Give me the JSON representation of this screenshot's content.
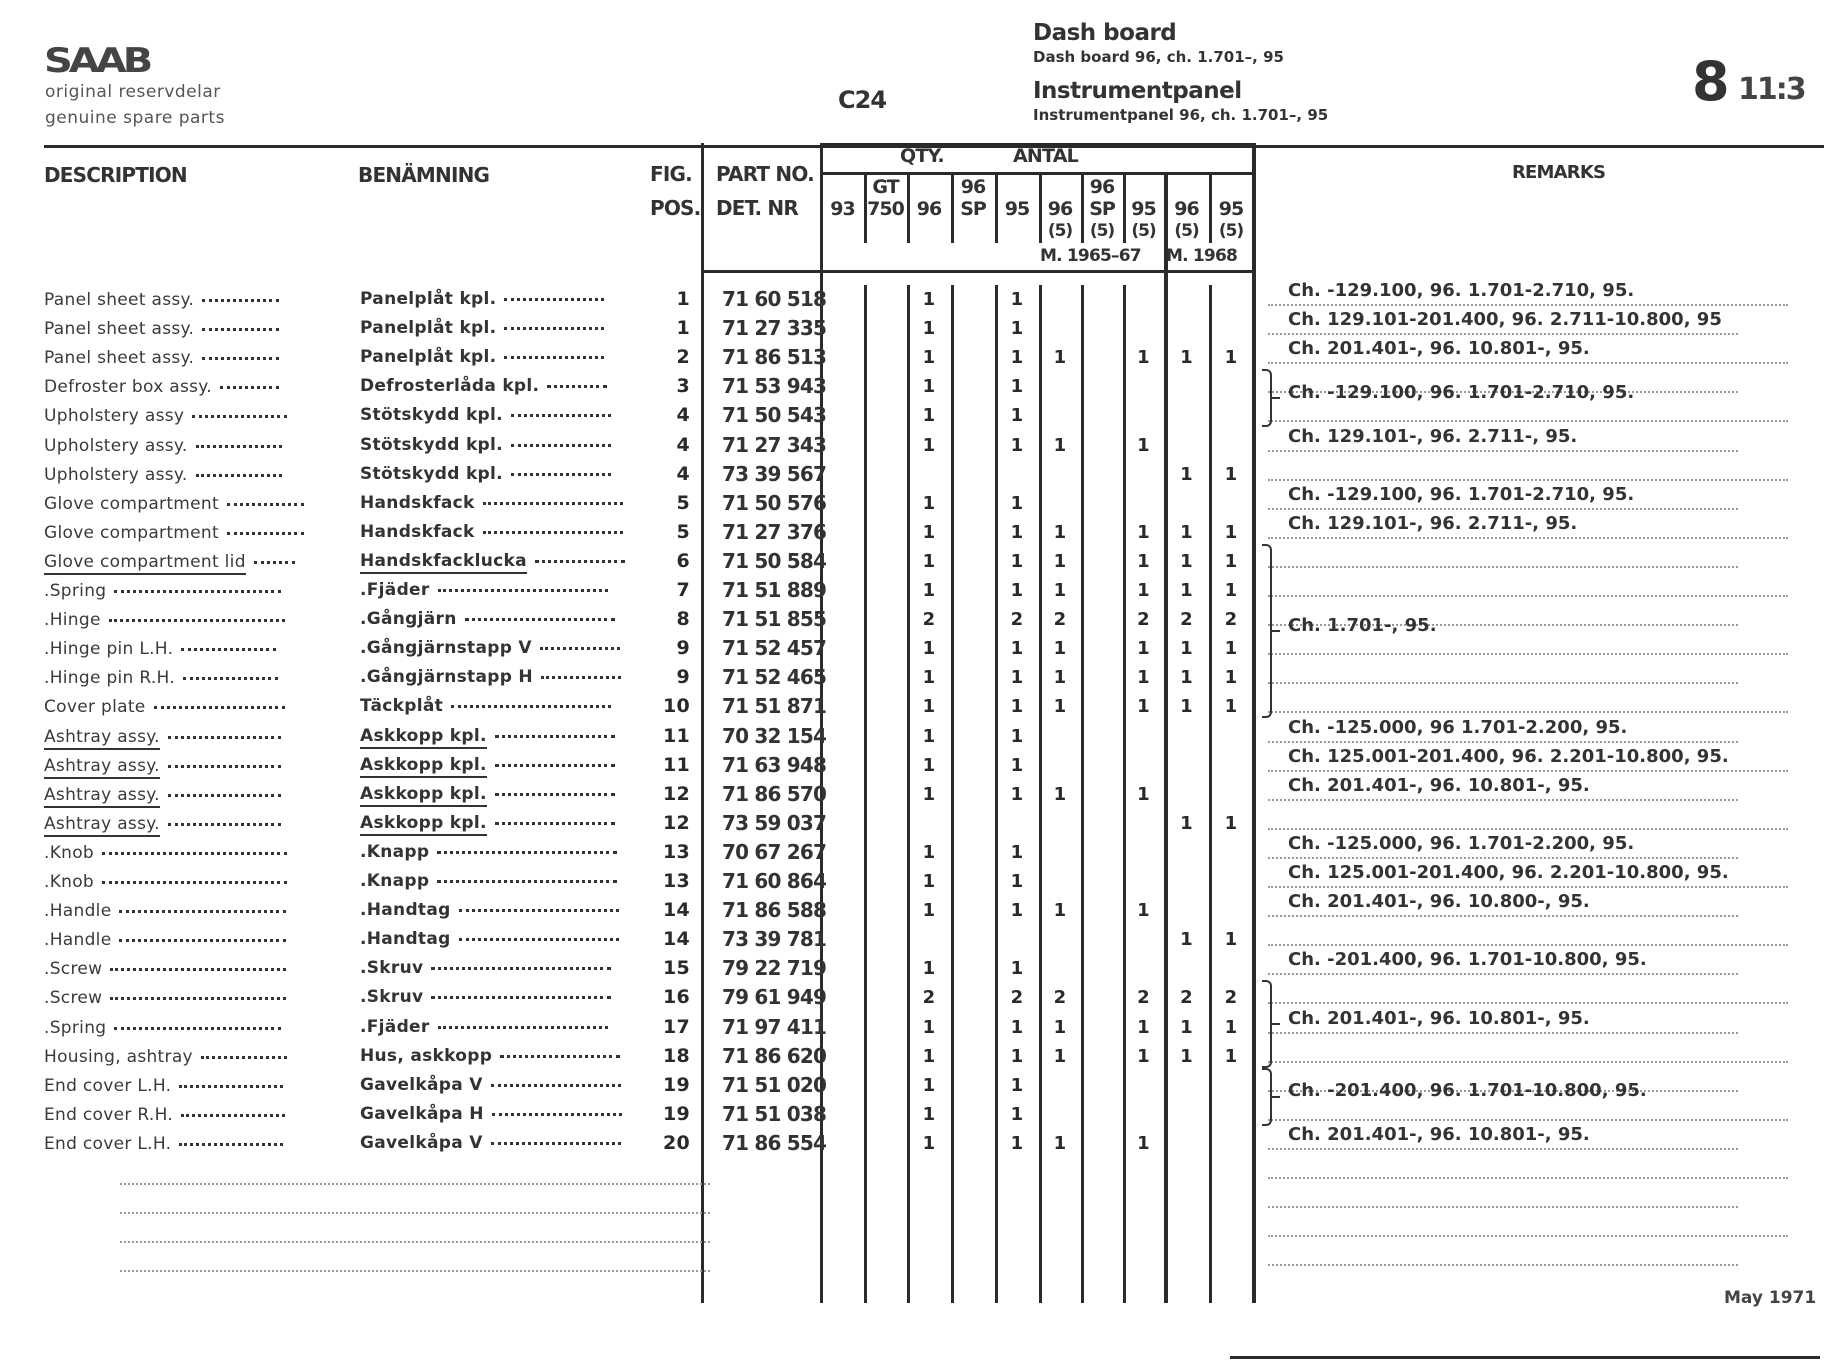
{
  "header": {
    "brand": "SAAB",
    "tagline_1": "original reservdelar",
    "tagline_2": "genuine spare parts",
    "group_code": "C24",
    "title_en": "Dash board",
    "subtitle_en": "Dash board 96, ch. 1.701–, 95",
    "title_sv": "Instrumentpanel",
    "subtitle_sv": "Instrumentpanel 96, ch. 1.701–, 95",
    "page_main": "8",
    "page_sub": "11:3"
  },
  "columns": {
    "description": "DESCRIPTION",
    "benamning": "BENÄMNING",
    "fig_1": "FIG.",
    "fig_2": "POS.",
    "part_1": "PART NO.",
    "part_2": "DET. NR",
    "qty": "QTY.",
    "antal": "ANTAL",
    "remarks": "REMARKS",
    "qty_cols": [
      {
        "top": "",
        "main": "93",
        "sub": ""
      },
      {
        "top": "GT",
        "main": "750",
        "sub": ""
      },
      {
        "top": "",
        "main": "96",
        "sub": ""
      },
      {
        "top": "96",
        "main": "SP",
        "sub": ""
      },
      {
        "top": "",
        "main": "95",
        "sub": ""
      },
      {
        "top": "",
        "main": "96",
        "sub": "(5)"
      },
      {
        "top": "96",
        "main": "SP",
        "sub": "(5)"
      },
      {
        "top": "",
        "main": "95",
        "sub": "(5)"
      },
      {
        "top": "",
        "main": "96",
        "sub": "(5)"
      },
      {
        "top": "",
        "main": "95",
        "sub": "(5)"
      }
    ],
    "model_year_1": "M. 1965–67",
    "model_year_2": "M. 1968"
  },
  "rows": [
    {
      "desc": "Panel sheet assy.",
      "ben": "Panelplåt kpl.",
      "fig": "1",
      "part": "71 60 518",
      "qty": [
        "",
        "",
        "1",
        "",
        "1",
        "",
        "",
        "",
        "",
        ""
      ]
    },
    {
      "desc": "Panel sheet assy.",
      "ben": "Panelplåt kpl.",
      "fig": "1",
      "part": "71 27 335",
      "qty": [
        "",
        "",
        "1",
        "",
        "1",
        "",
        "",
        "",
        "",
        ""
      ]
    },
    {
      "desc": "Panel sheet assy.",
      "ben": "Panelplåt kpl.",
      "fig": "2",
      "part": "71 86 513",
      "qty": [
        "",
        "",
        "1",
        "",
        "1",
        "1",
        "",
        "1",
        "1",
        "1"
      ]
    },
    {
      "desc": "Defroster box assy.",
      "ben": "Defrosterlåda kpl.",
      "fig": "3",
      "part": "71 53 943",
      "qty": [
        "",
        "",
        "1",
        "",
        "1",
        "",
        "",
        "",
        "",
        ""
      ]
    },
    {
      "desc": "Upholstery assy",
      "ben": "Stötskydd kpl.",
      "fig": "4",
      "part": "71 50 543",
      "qty": [
        "",
        "",
        "1",
        "",
        "1",
        "",
        "",
        "",
        "",
        ""
      ]
    },
    {
      "desc": "Upholstery assy.",
      "ben": "Stötskydd kpl.",
      "fig": "4",
      "part": "71 27 343",
      "qty": [
        "",
        "",
        "1",
        "",
        "1",
        "1",
        "",
        "1",
        "",
        ""
      ]
    },
    {
      "desc": "Upholstery assy.",
      "ben": "Stötskydd kpl.",
      "fig": "4",
      "part": "73 39 567",
      "qty": [
        "",
        "",
        "",
        "",
        "",
        "",
        "",
        "",
        "1",
        "1"
      ]
    },
    {
      "desc": "Glove compartment",
      "ben": "Handskfack",
      "fig": "5",
      "part": "71 50 576",
      "qty": [
        "",
        "",
        "1",
        "",
        "1",
        "",
        "",
        "",
        "",
        ""
      ]
    },
    {
      "desc": "Glove compartment",
      "ben": "Handskfack",
      "fig": "5",
      "part": "71 27 376",
      "qty": [
        "",
        "",
        "1",
        "",
        "1",
        "1",
        "",
        "1",
        "1",
        "1"
      ]
    },
    {
      "desc": "Glove compartment lid",
      "ben": "Handskfacklucka",
      "fig": "6",
      "part": "71 50 584",
      "qty": [
        "",
        "",
        "1",
        "",
        "1",
        "1",
        "",
        "1",
        "1",
        "1"
      ],
      "underline": true
    },
    {
      "desc": ".Spring",
      "ben": ".Fjäder",
      "fig": "7",
      "part": "71 51 889",
      "qty": [
        "",
        "",
        "1",
        "",
        "1",
        "1",
        "",
        "1",
        "1",
        "1"
      ]
    },
    {
      "desc": ".Hinge",
      "ben": ".Gångjärn",
      "fig": "8",
      "part": "71 51 855",
      "qty": [
        "",
        "",
        "2",
        "",
        "2",
        "2",
        "",
        "2",
        "2",
        "2"
      ]
    },
    {
      "desc": ".Hinge pin L.H.",
      "ben": ".Gångjärnstapp V",
      "fig": "9",
      "part": "71 52 457",
      "qty": [
        "",
        "",
        "1",
        "",
        "1",
        "1",
        "",
        "1",
        "1",
        "1"
      ]
    },
    {
      "desc": ".Hinge pin R.H.",
      "ben": ".Gångjärnstapp H",
      "fig": "9",
      "part": "71 52 465",
      "qty": [
        "",
        "",
        "1",
        "",
        "1",
        "1",
        "",
        "1",
        "1",
        "1"
      ]
    },
    {
      "desc": "Cover plate",
      "ben": "Täckplåt",
      "fig": "10",
      "part": "71 51 871",
      "qty": [
        "",
        "",
        "1",
        "",
        "1",
        "1",
        "",
        "1",
        "1",
        "1"
      ]
    },
    {
      "desc": "Ashtray assy.",
      "ben": "Askkopp kpl.",
      "fig": "11",
      "part": "70 32 154",
      "qty": [
        "",
        "",
        "1",
        "",
        "1",
        "",
        "",
        "",
        "",
        ""
      ],
      "underline": true
    },
    {
      "desc": "Ashtray assy.",
      "ben": "Askkopp kpl.",
      "fig": "11",
      "part": "71 63 948",
      "qty": [
        "",
        "",
        "1",
        "",
        "1",
        "",
        "",
        "",
        "",
        ""
      ],
      "underline": true
    },
    {
      "desc": "Ashtray assy.",
      "ben": "Askkopp kpl.",
      "fig": "12",
      "part": "71 86 570",
      "qty": [
        "",
        "",
        "1",
        "",
        "1",
        "1",
        "",
        "1",
        "",
        ""
      ],
      "underline": true
    },
    {
      "desc": "Ashtray assy.",
      "ben": "Askkopp kpl.",
      "fig": "12",
      "part": "73 59 037",
      "qty": [
        "",
        "",
        "",
        "",
        "",
        "",
        "",
        "",
        "1",
        "1"
      ],
      "underline": true
    },
    {
      "desc": ".Knob",
      "ben": ".Knapp",
      "fig": "13",
      "part": "70 67 267",
      "qty": [
        "",
        "",
        "1",
        "",
        "1",
        "",
        "",
        "",
        "",
        ""
      ]
    },
    {
      "desc": ".Knob",
      "ben": ".Knapp",
      "fig": "13",
      "part": "71 60 864",
      "qty": [
        "",
        "",
        "1",
        "",
        "1",
        "",
        "",
        "",
        "",
        ""
      ]
    },
    {
      "desc": ".Handle",
      "ben": ".Handtag",
      "fig": "14",
      "part": "71 86 588",
      "qty": [
        "",
        "",
        "1",
        "",
        "1",
        "1",
        "",
        "1",
        "",
        ""
      ]
    },
    {
      "desc": ".Handle",
      "ben": ".Handtag",
      "fig": "14",
      "part": "73 39 781",
      "qty": [
        "",
        "",
        "",
        "",
        "",
        "",
        "",
        "",
        "1",
        "1"
      ]
    },
    {
      "desc": ".Screw",
      "ben": ".Skruv",
      "fig": "15",
      "part": "79 22 719",
      "qty": [
        "",
        "",
        "1",
        "",
        "1",
        "",
        "",
        "",
        "",
        ""
      ]
    },
    {
      "desc": ".Screw",
      "ben": ".Skruv",
      "fig": "16",
      "part": "79 61 949",
      "qty": [
        "",
        "",
        "2",
        "",
        "2",
        "2",
        "",
        "2",
        "2",
        "2"
      ]
    },
    {
      "desc": ".Spring",
      "ben": ".Fjäder",
      "fig": "17",
      "part": "71 97 411",
      "qty": [
        "",
        "",
        "1",
        "",
        "1",
        "1",
        "",
        "1",
        "1",
        "1"
      ]
    },
    {
      "desc": "Housing, ashtray",
      "ben": "Hus, askkopp",
      "fig": "18",
      "part": "71 86 620",
      "qty": [
        "",
        "",
        "1",
        "",
        "1",
        "1",
        "",
        "1",
        "1",
        "1"
      ]
    },
    {
      "desc": "End cover L.H.",
      "ben": "Gavelkåpa V",
      "fig": "19",
      "part": "71 51 020",
      "qty": [
        "",
        "",
        "1",
        "",
        "1",
        "",
        "",
        "",
        "",
        ""
      ]
    },
    {
      "desc": "End cover R.H.",
      "ben": "Gavelkåpa H",
      "fig": "19",
      "part": "71 51 038",
      "qty": [
        "",
        "",
        "1",
        "",
        "1",
        "",
        "",
        "",
        "",
        ""
      ]
    },
    {
      "desc": "End cover L.H.",
      "ben": "Gavelkåpa V",
      "fig": "20",
      "part": "71 86 554",
      "qty": [
        "",
        "",
        "1",
        "",
        "1",
        "1",
        "",
        "1",
        "",
        ""
      ]
    }
  ],
  "remarks": [
    {
      "from": 0,
      "to": 0,
      "text": "Ch. -129.100, 96. 1.701-2.710, 95."
    },
    {
      "from": 1,
      "to": 1,
      "text": "Ch. 129.101-201.400, 96. 2.711-10.800, 95"
    },
    {
      "from": 2,
      "to": 2,
      "text": "Ch. 201.401-, 96. 10.801-, 95."
    },
    {
      "from": 3,
      "to": 4,
      "brace": true,
      "text": "Ch. -129.100, 96. 1.701-2.710, 95."
    },
    {
      "from": 5,
      "to": 5,
      "text": "Ch. 129.101-, 96. 2.711-, 95."
    },
    {
      "from": 7,
      "to": 7,
      "text": "Ch. -129.100, 96. 1.701-2.710, 95."
    },
    {
      "from": 8,
      "to": 8,
      "text": "Ch. 129.101-, 96. 2.711-, 95."
    },
    {
      "from": 9,
      "to": 14,
      "brace": true,
      "text": "Ch. 1.701-, 95."
    },
    {
      "from": 15,
      "to": 15,
      "text": "Ch. -125.000, 96 1.701-2.200, 95."
    },
    {
      "from": 16,
      "to": 16,
      "text": "Ch. 125.001-201.400, 96. 2.201-10.800, 95."
    },
    {
      "from": 17,
      "to": 17,
      "text": "Ch. 201.401-, 96. 10.801-, 95."
    },
    {
      "from": 19,
      "to": 19,
      "text": "Ch. -125.000, 96. 1.701-2.200, 95."
    },
    {
      "from": 20,
      "to": 20,
      "text": "Ch. 125.001-201.400, 96. 2.201-10.800, 95."
    },
    {
      "from": 21,
      "to": 21,
      "text": "Ch. 201.401-, 96. 10.800-, 95."
    },
    {
      "from": 23,
      "to": 23,
      "text": "Ch. -201.400, 96. 1.701-10.800, 95."
    },
    {
      "from": 24,
      "to": 26,
      "brace": true,
      "text": "Ch. 201.401-, 96. 10.801-, 95."
    },
    {
      "from": 27,
      "to": 28,
      "brace": true,
      "text": "Ch. -201.400, 96. 1.701-10.800, 95."
    },
    {
      "from": 29,
      "to": 29,
      "text": "Ch. 201.401-, 96. 10.801-, 95."
    }
  ],
  "footer": {
    "date": "May 1971"
  }
}
